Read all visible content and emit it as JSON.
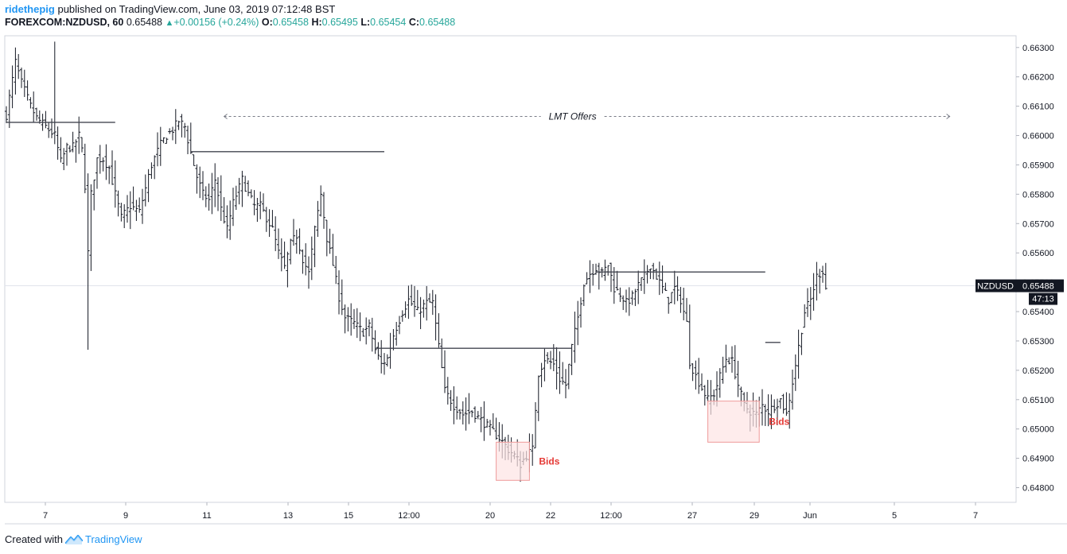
{
  "header": {
    "author": "ridethepig",
    "published": "published on TradingView.com, June 03, 2019 07:12:48 BST",
    "symbol": "FOREXCOM:NZDUSD, 60",
    "last": "0.65488",
    "change": "+0.00156 (+0.24%)",
    "o_label": "O:",
    "o_value": "0.65458",
    "h_label": "H:",
    "h_value": "0.65495",
    "l_label": "L:",
    "l_value": "0.65454",
    "c_label": "C:",
    "c_value": "0.65488"
  },
  "footer": {
    "created_with": "Created with",
    "brand": "TradingView"
  },
  "colors": {
    "brand_blue": "#2196f3",
    "up_green": "#26a69a",
    "annotation_red": "#e53935",
    "box_fill": "#fde4e4",
    "box_stroke": "#ef9a9a",
    "bar": "#131722"
  },
  "chart_data": {
    "type": "ohlc",
    "ylim": [
      0.6475,
      0.6634
    ],
    "yticks": [
      "0.66300",
      "0.66200",
      "0.66100",
      "0.66000",
      "0.65900",
      "0.65800",
      "0.65700",
      "0.65600",
      "0.65500",
      "0.65400",
      "0.65300",
      "0.65200",
      "0.65100",
      "0.65000",
      "0.64900",
      "0.64800"
    ],
    "xticks": [
      "7",
      "9",
      "11",
      "13",
      "15",
      "12:00",
      "20",
      "22",
      "12:00",
      "27",
      "29",
      "Jun",
      "5",
      "7"
    ],
    "current_price": {
      "label": "NZDUSD",
      "value": "0.65488",
      "countdown": "47:13"
    },
    "anchors": [
      [
        0,
        0.6607
      ],
      [
        3,
        0.6625
      ],
      [
        5,
        0.6618
      ],
      [
        8,
        0.661
      ],
      [
        10,
        0.6606
      ],
      [
        13,
        0.6603
      ],
      [
        16,
        0.66
      ],
      [
        18,
        0.6591
      ],
      [
        20,
        0.6596
      ],
      [
        22,
        0.6596
      ],
      [
        24,
        0.66
      ],
      [
        25,
        0.6595
      ],
      [
        26,
        0.6583
      ],
      [
        27,
        0.656
      ],
      [
        28,
        0.658
      ],
      [
        30,
        0.6592
      ],
      [
        32,
        0.6592
      ],
      [
        34,
        0.6589
      ],
      [
        36,
        0.658
      ],
      [
        38,
        0.6572
      ],
      [
        41,
        0.6576
      ],
      [
        44,
        0.6574
      ],
      [
        48,
        0.659
      ],
      [
        51,
        0.6597
      ],
      [
        53,
        0.66
      ],
      [
        55,
        0.6602
      ],
      [
        57,
        0.6605
      ],
      [
        59,
        0.6603
      ],
      [
        61,
        0.6594
      ],
      [
        63,
        0.6586
      ],
      [
        65,
        0.658
      ],
      [
        67,
        0.6578
      ],
      [
        69,
        0.6585
      ],
      [
        71,
        0.6575
      ],
      [
        73,
        0.6568
      ],
      [
        75,
        0.6577
      ],
      [
        78,
        0.6585
      ],
      [
        80,
        0.658
      ],
      [
        82,
        0.6576
      ],
      [
        84,
        0.6576
      ],
      [
        86,
        0.6572
      ],
      [
        88,
        0.6568
      ],
      [
        90,
        0.656
      ],
      [
        92,
        0.6555
      ],
      [
        94,
        0.6563
      ],
      [
        96,
        0.6566
      ],
      [
        98,
        0.6558
      ],
      [
        100,
        0.6553
      ],
      [
        102,
        0.6568
      ],
      [
        104,
        0.658
      ],
      [
        106,
        0.6565
      ],
      [
        108,
        0.6556
      ],
      [
        110,
        0.6545
      ],
      [
        112,
        0.6538
      ],
      [
        115,
        0.6536
      ],
      [
        118,
        0.6533
      ],
      [
        120,
        0.6535
      ],
      [
        122,
        0.6527
      ],
      [
        124,
        0.6522
      ],
      [
        126,
        0.6524
      ],
      [
        128,
        0.6532
      ],
      [
        131,
        0.654
      ],
      [
        133,
        0.6544
      ],
      [
        136,
        0.654
      ],
      [
        139,
        0.6543
      ],
      [
        141,
        0.6543
      ],
      [
        143,
        0.6528
      ],
      [
        145,
        0.6513
      ],
      [
        148,
        0.6508
      ],
      [
        151,
        0.6505
      ],
      [
        154,
        0.6506
      ],
      [
        157,
        0.6503
      ],
      [
        160,
        0.65
      ],
      [
        163,
        0.6497
      ],
      [
        166,
        0.6493
      ],
      [
        168,
        0.6491
      ],
      [
        170,
        0.6488
      ],
      [
        172,
        0.6491
      ],
      [
        174,
        0.6493
      ],
      [
        175,
        0.6507
      ],
      [
        176,
        0.6519
      ],
      [
        178,
        0.6524
      ],
      [
        181,
        0.6522
      ],
      [
        183,
        0.6517
      ],
      [
        185,
        0.6515
      ],
      [
        187,
        0.6528
      ],
      [
        189,
        0.6538
      ],
      [
        191,
        0.655
      ],
      [
        193,
        0.6553
      ],
      [
        195,
        0.6555
      ],
      [
        197,
        0.6553
      ],
      [
        199,
        0.6556
      ],
      [
        201,
        0.6548
      ],
      [
        203,
        0.6546
      ],
      [
        205,
        0.6543
      ],
      [
        207,
        0.6545
      ],
      [
        209,
        0.6549
      ],
      [
        211,
        0.6552
      ],
      [
        213,
        0.6556
      ],
      [
        215,
        0.6552
      ],
      [
        217,
        0.6548
      ],
      [
        219,
        0.6544
      ],
      [
        221,
        0.6548
      ],
      [
        223,
        0.6544
      ],
      [
        225,
        0.6536
      ],
      [
        226,
        0.6523
      ],
      [
        228,
        0.6518
      ],
      [
        230,
        0.6514
      ],
      [
        232,
        0.651
      ],
      [
        234,
        0.6512
      ],
      [
        236,
        0.6518
      ],
      [
        238,
        0.6524
      ],
      [
        240,
        0.6523
      ],
      [
        242,
        0.6515
      ],
      [
        244,
        0.6508
      ],
      [
        246,
        0.6506
      ],
      [
        248,
        0.6505
      ],
      [
        250,
        0.6508
      ],
      [
        252,
        0.6506
      ],
      [
        254,
        0.6508
      ],
      [
        256,
        0.651
      ],
      [
        258,
        0.6505
      ],
      [
        260,
        0.6516
      ],
      [
        262,
        0.6528
      ],
      [
        264,
        0.654
      ],
      [
        266,
        0.6544
      ],
      [
        268,
        0.6552
      ],
      [
        270,
        0.6554
      ],
      [
        271,
        0.6548
      ]
    ],
    "spikes": [
      {
        "bar": 27,
        "low": 0.6527
      },
      {
        "bar": 3,
        "high": 0.663
      },
      {
        "bar": 16,
        "high": 0.6632
      },
      {
        "bar": 104,
        "high": 0.6583
      },
      {
        "bar": 170,
        "low": 0.6482
      }
    ],
    "levels": [
      {
        "from": 0,
        "to": 36,
        "price": 0.66045
      },
      {
        "from": 61,
        "to": 125,
        "price": 0.65945
      },
      {
        "from": 122,
        "to": 187,
        "price": 0.65275
      },
      {
        "from": 195,
        "to": 251,
        "price": 0.65535
      },
      {
        "from": 251,
        "to": 256,
        "price": 0.65295
      }
    ],
    "annotations": [
      {
        "text": "LMT Offers",
        "price": 0.66065,
        "from": 72,
        "to": 312
      },
      {
        "text": "Bids",
        "box": {
          "from": 162,
          "to": 173,
          "top": 0.64955,
          "bottom": 0.64825
        }
      },
      {
        "text": "Bids",
        "box": {
          "from": 232,
          "to": 249,
          "top": 0.65095,
          "bottom": 0.64955
        }
      }
    ]
  }
}
